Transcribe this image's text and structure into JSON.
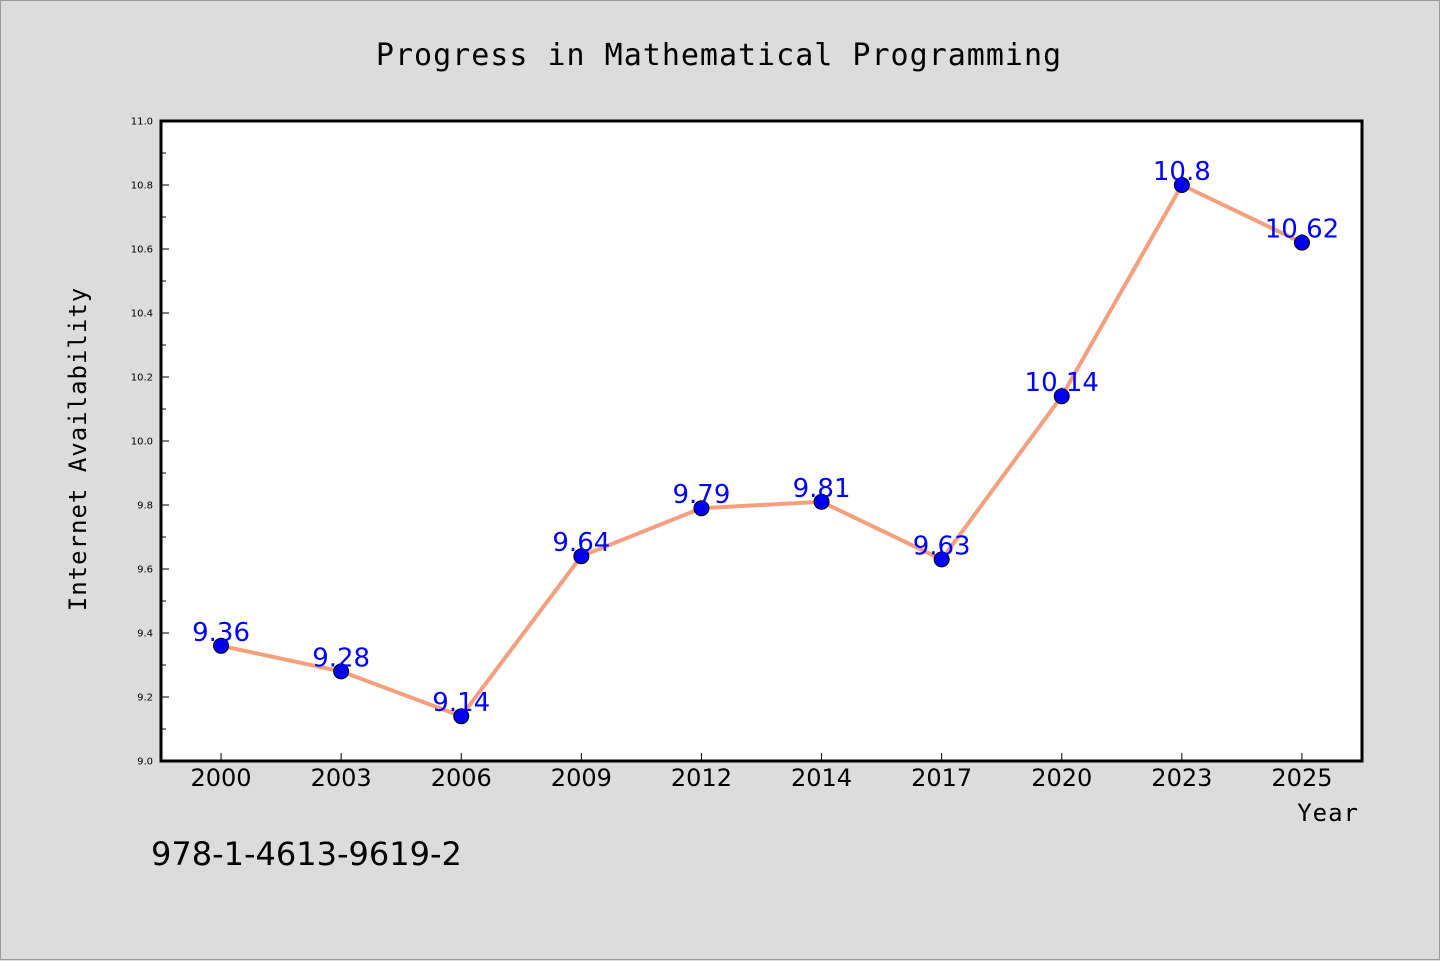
{
  "chart_data": {
    "type": "line",
    "title": "Progress in Mathematical Programming",
    "xlabel": "Year",
    "ylabel": "Internet Availability",
    "categories": [
      "2000",
      "2003",
      "2006",
      "2009",
      "2012",
      "2014",
      "2017",
      "2020",
      "2023",
      "2025"
    ],
    "values": [
      9.36,
      9.28,
      9.14,
      9.64,
      9.79,
      9.81,
      9.63,
      10.14,
      10.8,
      10.62
    ],
    "data_labels": [
      "9.36",
      "9.28",
      "9.14",
      "9.64",
      "9.79",
      "9.81",
      "9.63",
      "10.14",
      "10.8",
      "10.62"
    ],
    "ylim": [
      9.0,
      11.0
    ],
    "yticks": [
      "9.0",
      "9.2",
      "9.4",
      "9.6",
      "9.8",
      "10.0",
      "10.2",
      "10.4",
      "10.6",
      "10.8",
      "11.0"
    ],
    "grid": false,
    "legend": "none",
    "line_color": "#f4a07f",
    "marker_color": "#0000ee",
    "label_color": "#0000ff"
  },
  "footer": {
    "isbn": "978-1-4613-9619-2"
  }
}
